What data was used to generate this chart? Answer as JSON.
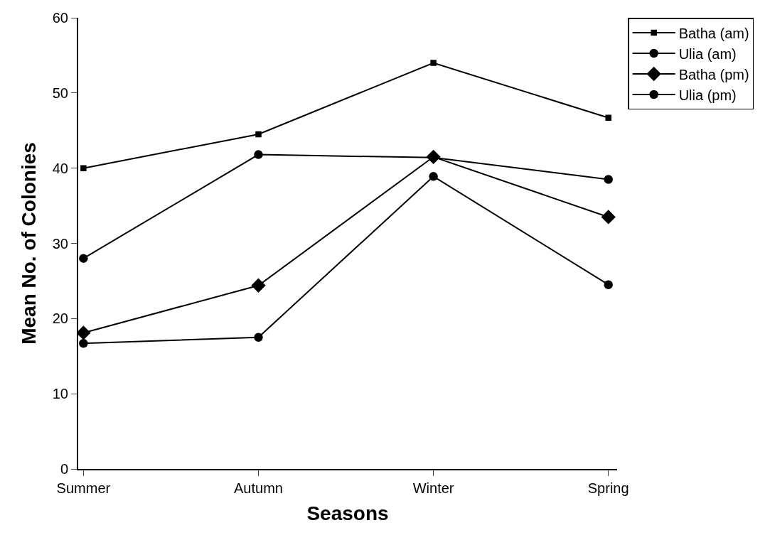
{
  "chart_data": {
    "type": "line",
    "xlabel": "Seasons",
    "ylabel": "Mean No. of Colonies",
    "categories": [
      "Summer",
      "Autumn",
      "Winter",
      "Spring"
    ],
    "ylim": [
      0,
      60
    ],
    "yticks": [
      0,
      10,
      20,
      30,
      40,
      50,
      60
    ],
    "legend": "top right",
    "series": [
      {
        "name": "Batha (am)",
        "color": "#000000",
        "marker": "square",
        "values": [
          40,
          44.5,
          54,
          46.7
        ]
      },
      {
        "name": "Ulia (am)",
        "color": "#000000",
        "marker": "circle",
        "values": [
          28,
          41.8,
          41.4,
          38.5
        ]
      },
      {
        "name": "Batha (pm)",
        "color": "#000000",
        "marker": "diamond",
        "values": [
          18.1,
          24.4,
          41.5,
          33.5
        ]
      },
      {
        "name": "Ulia (pm)",
        "color": "#000000",
        "marker": "circle",
        "values": [
          16.7,
          17.5,
          38.9,
          24.5
        ]
      }
    ]
  }
}
